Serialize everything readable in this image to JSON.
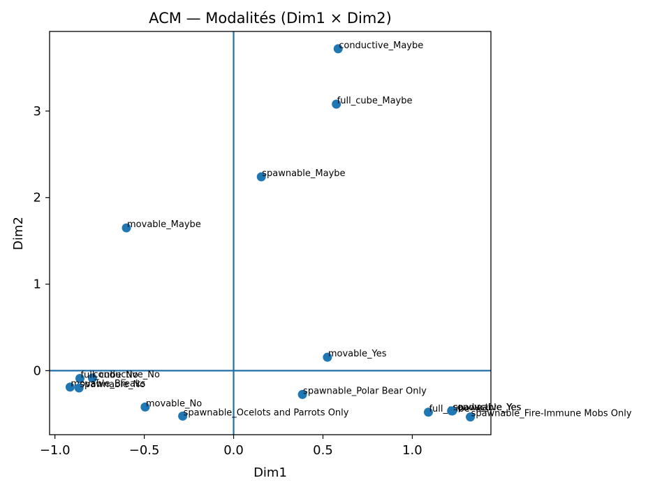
{
  "chart_data": {
    "type": "scatter",
    "title": "ACM — Modalités (Dim1 × Dim2)",
    "xlabel": "Dim1",
    "ylabel": "Dim2",
    "xlim": [
      -1.03,
      1.44
    ],
    "ylim": [
      -0.74,
      3.92
    ],
    "xticks": [
      -1.0,
      -0.5,
      0.0,
      0.5,
      1.0
    ],
    "xtick_labels": [
      "−1.0",
      "−0.5",
      "0.0",
      "0.5",
      "1.0"
    ],
    "yticks": [
      0,
      1,
      2,
      3
    ],
    "ytick_labels": [
      "0",
      "1",
      "2",
      "3"
    ],
    "reference_lines": {
      "x": 0,
      "y": 0
    },
    "grid": false,
    "colors": {
      "points": "#1f77b4",
      "reference_lines": "#1f6fa8",
      "frame": "#000000"
    },
    "points": [
      {
        "label": "conductive_Maybe",
        "x": 0.585,
        "y": 3.72
      },
      {
        "label": "full_cube_Maybe",
        "x": 0.575,
        "y": 3.08
      },
      {
        "label": "spawnable_Maybe",
        "x": 0.155,
        "y": 2.24
      },
      {
        "label": "movable_Maybe",
        "x": -0.6,
        "y": 1.65
      },
      {
        "label": "movable_Yes",
        "x": 0.525,
        "y": 0.155
      },
      {
        "label": "conductive_No",
        "x": -0.79,
        "y": -0.085
      },
      {
        "label": "full_cube_No",
        "x": -0.86,
        "y": -0.09
      },
      {
        "label": "movable_Breaks",
        "x": -0.915,
        "y": -0.19
      },
      {
        "label": "spawnable_No",
        "x": -0.865,
        "y": -0.2
      },
      {
        "label": "movable_No",
        "x": -0.495,
        "y": -0.42
      },
      {
        "label": "spawnable_Ocelots and Parrots Only",
        "x": -0.285,
        "y": -0.525
      },
      {
        "label": "spawnable_Polar Bear Only",
        "x": 0.385,
        "y": -0.275
      },
      {
        "label": "full_cube_Yes",
        "x": 1.09,
        "y": -0.48
      },
      {
        "label": "conductive_Yes",
        "x": 1.22,
        "y": -0.465
      },
      {
        "label": "spawnable_Yes",
        "x": 1.225,
        "y": -0.465
      },
      {
        "label": "spawnable_Fire-Immune Mobs Only",
        "x": 1.325,
        "y": -0.535
      }
    ]
  }
}
